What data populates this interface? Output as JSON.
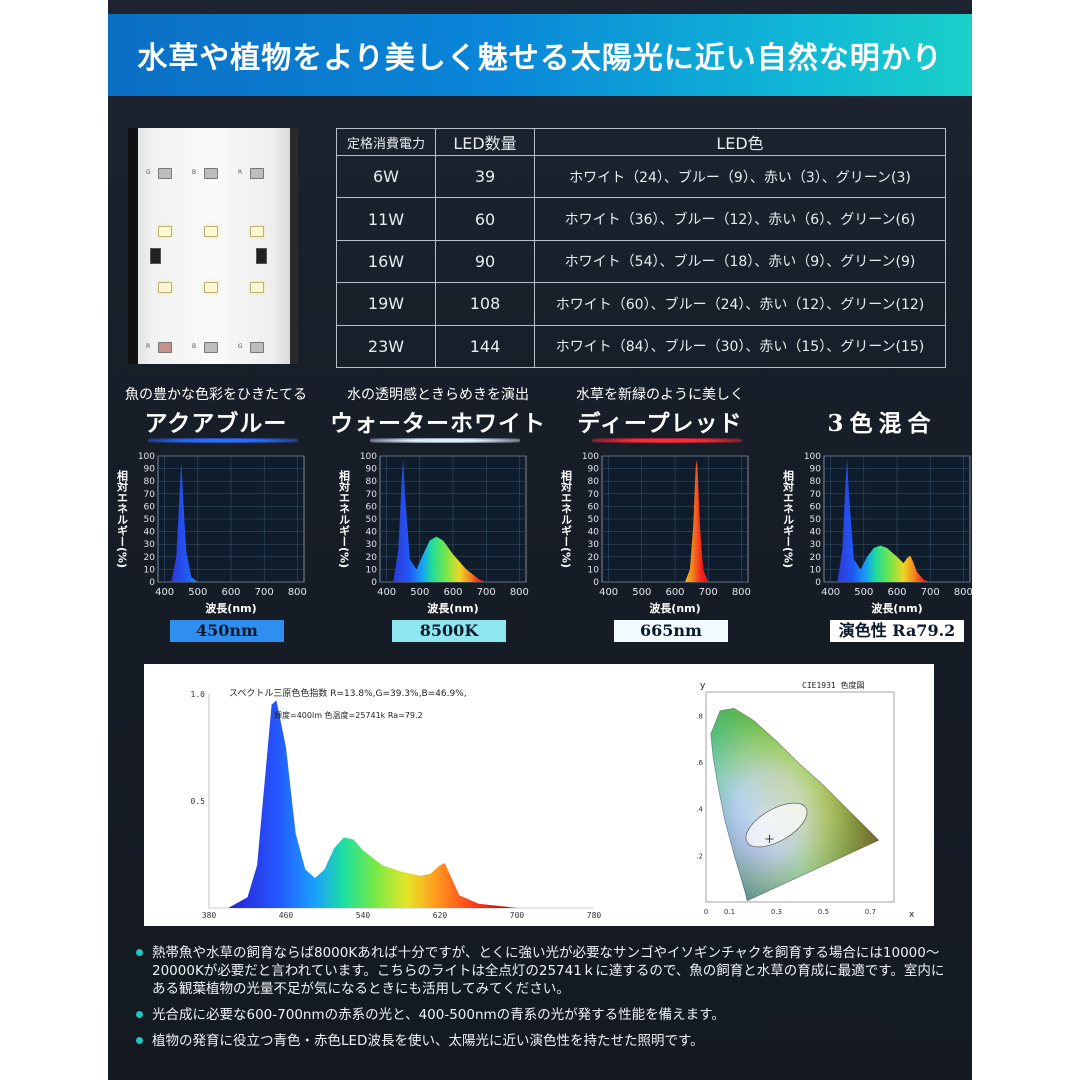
{
  "banner": {
    "title": "水草や植物をより美しく魅せる太陽光に近い自然な明かり"
  },
  "product": {
    "led_marks": [
      "G",
      "B",
      "R",
      "W",
      "W",
      "W",
      "W",
      "W",
      "W",
      "R",
      "B",
      "G"
    ]
  },
  "spec_table": {
    "headers": [
      "定格消費電力",
      "LED数量",
      "LED色"
    ],
    "rows": [
      [
        "6W",
        "39",
        "ホワイト（24）、ブルー（9）、赤い（3）、グリーン(3)"
      ],
      [
        "11W",
        "60",
        "ホワイト（36）、ブルー（12）、赤い（6）、グリーン(6)"
      ],
      [
        "16W",
        "90",
        "ホワイト（54）、ブルー（18）、赤い（9）、グリーン(9)"
      ],
      [
        "19W",
        "108",
        "ホワイト（60）、ブルー（24）、赤い（12）、グリーン(12)"
      ],
      [
        "23W",
        "144",
        "ホワイト（84）、ブルー（30）、赤い（15）、グリーン(15)"
      ]
    ]
  },
  "spectra": [
    {
      "subtitle": "魚の豊かな色彩をひきたてる",
      "title": "アクアブルー",
      "label": "450nm",
      "line_color": "#2c6cff",
      "box_color": "#2f8ff0"
    },
    {
      "subtitle": "水の透明感ときらめきを演出",
      "title": "ウォーターホワイト",
      "label": "8500K",
      "line_color": "#dbeeff",
      "box_color": "#8fe7f2"
    },
    {
      "subtitle": "水草を新緑のように美しく",
      "title": "ディープレッド",
      "label": "665nm",
      "line_color": "#ff2a3a",
      "box_color": "#f2fbff"
    },
    {
      "subtitle": "",
      "title": "3色混合",
      "label": "演色性 Ra79.2",
      "line_color": "#1d2430",
      "box_color": "#ffffff"
    }
  ],
  "chart_data": [
    {
      "type": "area",
      "ylabel": "相対エネルギー(%)",
      "xlabel": "波長(nm)",
      "x_ticks": [
        400,
        500,
        600,
        700,
        800
      ],
      "y_ticks": [
        0,
        10,
        20,
        30,
        40,
        50,
        60,
        70,
        80,
        90,
        100
      ],
      "xlim": [
        380,
        820
      ],
      "ylim": [
        0,
        100
      ],
      "x": [
        420,
        435,
        445,
        450,
        455,
        465,
        480,
        500
      ],
      "y": [
        0,
        20,
        70,
        97,
        70,
        25,
        4,
        0
      ]
    },
    {
      "type": "area",
      "ylabel": "相対エネルギー(%)",
      "xlabel": "波長(nm)",
      "x_ticks": [
        400,
        500,
        600,
        700,
        800
      ],
      "y_ticks": [
        0,
        10,
        20,
        30,
        40,
        50,
        60,
        70,
        80,
        90,
        100
      ],
      "xlim": [
        380,
        820
      ],
      "ylim": [
        0,
        100
      ],
      "x": [
        420,
        435,
        445,
        450,
        455,
        470,
        490,
        510,
        530,
        550,
        570,
        600,
        640,
        680,
        700
      ],
      "y": [
        0,
        25,
        80,
        98,
        70,
        18,
        10,
        22,
        33,
        36,
        33,
        22,
        10,
        2,
        0
      ]
    },
    {
      "type": "area",
      "ylabel": "相対エネルギー(%)",
      "xlabel": "波長(nm)",
      "x_ticks": [
        400,
        500,
        600,
        700,
        800
      ],
      "y_ticks": [
        0,
        10,
        20,
        30,
        40,
        50,
        60,
        70,
        80,
        90,
        100
      ],
      "xlim": [
        380,
        820
      ],
      "ylim": [
        0,
        100
      ],
      "x": [
        630,
        645,
        655,
        662,
        665,
        668,
        675,
        685,
        700
      ],
      "y": [
        0,
        10,
        45,
        90,
        97,
        90,
        45,
        10,
        0
      ]
    },
    {
      "type": "area",
      "ylabel": "相対エネルギー(%)",
      "xlabel": "波長(nm)",
      "x_ticks": [
        400,
        500,
        600,
        700,
        800
      ],
      "y_ticks": [
        0,
        10,
        20,
        30,
        40,
        50,
        60,
        70,
        80,
        90,
        100
      ],
      "xlim": [
        380,
        820
      ],
      "ylim": [
        0,
        100
      ],
      "x": [
        420,
        435,
        445,
        450,
        455,
        470,
        490,
        510,
        530,
        550,
        570,
        600,
        620,
        630,
        640,
        650,
        660,
        680,
        700
      ],
      "y": [
        0,
        25,
        80,
        98,
        70,
        18,
        10,
        20,
        27,
        29,
        27,
        20,
        15,
        19,
        21,
        15,
        8,
        2,
        0
      ]
    },
    {
      "type": "area",
      "title": "スペクトル三原色色指数 R=13.8%,G=39.3%,B=46.9%,",
      "subtitle": "輝度=400lm 色温度=25741k Ra=79.2",
      "x_ticks": [
        380,
        460,
        540,
        620,
        700,
        780
      ],
      "y_ticks": [
        "0.5",
        "1.0"
      ],
      "xlim": [
        380,
        780
      ],
      "ylim": [
        0,
        1.0
      ],
      "x": [
        380,
        400,
        420,
        430,
        440,
        445,
        450,
        460,
        470,
        480,
        490,
        500,
        510,
        520,
        530,
        540,
        560,
        580,
        600,
        610,
        620,
        625,
        630,
        640,
        660,
        690,
        700
      ],
      "y": [
        0,
        0,
        0.05,
        0.2,
        0.7,
        0.95,
        0.97,
        0.75,
        0.35,
        0.18,
        0.14,
        0.18,
        0.28,
        0.33,
        0.32,
        0.27,
        0.2,
        0.17,
        0.15,
        0.16,
        0.2,
        0.21,
        0.16,
        0.06,
        0.02,
        0.005,
        0
      ]
    },
    {
      "type": "scatter",
      "title": "CIE1931 色度図",
      "xlabel": "x",
      "ylabel": "y",
      "x_ticks": [
        "0",
        "0.1",
        "0.3",
        "0.5",
        "0.7"
      ],
      "y_ticks": [
        ".2",
        ".4",
        ".6",
        ".8"
      ]
    }
  ],
  "notes": [
    "熱帯魚や水草の飼育ならば8000Kあれば十分ですが、とくに強い光が必要なサンゴやイソギンチャクを飼育する場合には10000～20000Kが必要だと言われています。こちらのライトは全点灯の25741ｋに達するので、魚の飼育と水草の育成に最適です。室内にある観葉植物の光量不足が気になるときにも活用してみてください。",
    "光合成に必要な600-700nmの赤系の光と、400-500nmの青系の光が発する性能を備えます。",
    "植物の発育に役立つ青色・赤色LED波長を使い、太陽光に近い演色性を持たせた照明です。"
  ]
}
